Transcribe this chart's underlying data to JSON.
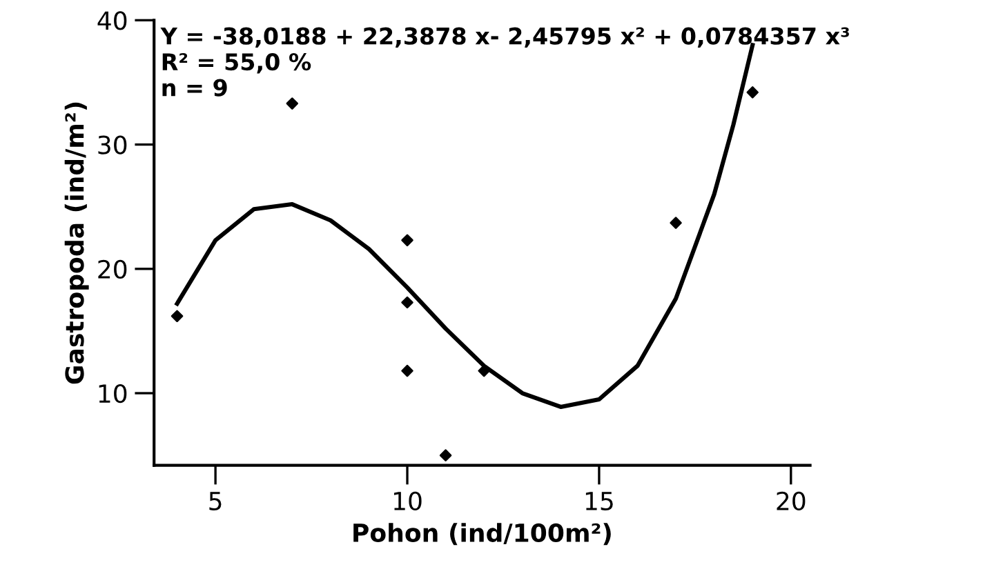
{
  "chart_data": {
    "type": "scatter",
    "xlabel": "Pohon (ind/100m²)",
    "ylabel": "Gastropoda (ind/m²)",
    "annotations": [
      "Y = -38,0188 + 22,3878 x- 2,45795 x² + 0,0784357 x³",
      "R² = 55,0 %",
      "n = 9"
    ],
    "xlim": [
      3.4,
      20.5
    ],
    "xticks": [
      5,
      10,
      15,
      20
    ],
    "ylim": [
      4.2,
      40
    ],
    "yticks": [
      10,
      20,
      30,
      40
    ],
    "grid": false,
    "legend": false,
    "series": [
      {
        "color": "#000000",
        "marker": "diamond",
        "x": [
          4,
          7,
          10,
          10,
          10,
          11,
          12,
          17,
          19
        ],
        "values": [
          16.2,
          33.3,
          22.3,
          17.3,
          11.8,
          5.0,
          11.8,
          23.7,
          34.2
        ]
      },
      {
        "type": "line",
        "color": "#000000",
        "marker": "none",
        "line_style": "solid",
        "x": [
          4,
          5,
          6,
          7,
          8,
          9,
          10,
          11,
          12,
          13,
          14,
          15,
          16,
          17,
          18,
          18.5,
          19
        ],
        "values": [
          17.2,
          22.3,
          24.8,
          25.2,
          23.9,
          21.6,
          18.5,
          15.2,
          12.2,
          10.0,
          8.9,
          9.5,
          12.2,
          17.6,
          26.0,
          31.6,
          38.0
        ]
      }
    ]
  }
}
